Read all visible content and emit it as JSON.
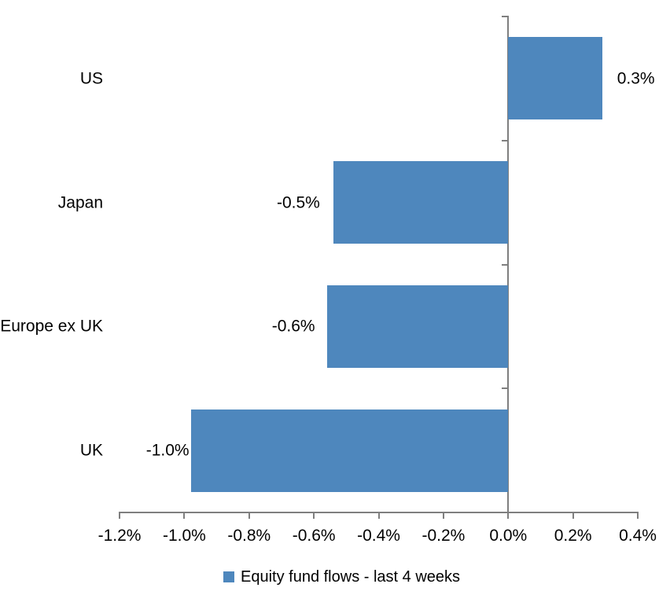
{
  "chart_data": {
    "type": "bar",
    "orientation": "horizontal",
    "title": "",
    "categories": [
      "US",
      "Japan",
      "Europe ex UK",
      "UK"
    ],
    "values": [
      0.3,
      -0.5,
      -0.6,
      -1.0
    ],
    "values_precise": [
      0.29,
      -0.54,
      -0.56,
      -0.98
    ],
    "data_labels": [
      "0.3%",
      "-0.5%",
      "-0.6%",
      "-1.0%"
    ],
    "series_name": "Equity fund flows - last 4 weeks",
    "unit": "%",
    "xlim": [
      -1.2,
      0.4
    ],
    "x_tick_step": 0.2,
    "x_tick_labels": [
      "-1.2%",
      "-1.0%",
      "-0.8%",
      "-0.6%",
      "-0.4%",
      "-0.2%",
      "0.0%",
      "0.2%",
      "0.4%"
    ],
    "grid": false,
    "legend_position": "bottom",
    "colors": {
      "bar": "#4e87bd",
      "axis": "#7f7f7f",
      "text": "#000000",
      "background": "#ffffff"
    }
  },
  "legend": {
    "label": "Equity fund flows - last 4 weeks"
  }
}
